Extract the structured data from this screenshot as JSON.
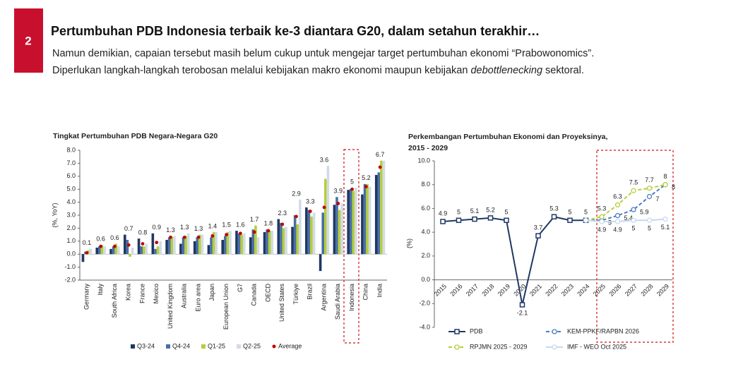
{
  "header": {
    "number": "2",
    "title": "Pertumbuhan PDB Indonesia terbaik ke-3 diantara G20, dalam setahun terakhir…",
    "line1": "Namun demikian, capaian tersebut masih belum cukup untuk mengejar target pertumbuhan ekonomi “Prabowonomics”.",
    "line2": [
      "Diperlukan langkah-langkah terobosan melalui kebijakan makro ekonomi maupun kebijakan ",
      "debottlenecking",
      " sektoral."
    ]
  },
  "chart_data": [
    {
      "type": "bar",
      "title": "Tingkat Pertumbuhan PDB Negara-Negara G20",
      "ylabel": "(%, YoY)",
      "categories": [
        "Germany",
        "Italy",
        "South Africa",
        "Korea",
        "France",
        "Mexico",
        "United Kingdom",
        "Australia",
        "Euro area",
        "Japan",
        "European Union",
        "G7",
        "Canada",
        "OECD",
        "United States",
        "Türkiye",
        "Brazil",
        "Argentina",
        "Saudi Arabia",
        "Indonesia",
        "China",
        "India"
      ],
      "series": [
        {
          "name": "Q3-24",
          "color": "#1f3864",
          "values": [
            -0.6,
            0.5,
            0.4,
            1.5,
            1.2,
            1.6,
            1.1,
            0.8,
            1.0,
            0.7,
            1.1,
            1.8,
            1.3,
            1.7,
            2.7,
            2.1,
            3.6,
            -1.3,
            3.8,
            4.95,
            4.6,
            6.1
          ]
        },
        {
          "name": "Q4-24",
          "color": "#4a6fa5",
          "values": [
            0.2,
            0.6,
            0.6,
            1.1,
            0.6,
            0.4,
            1.3,
            1.3,
            1.3,
            1.3,
            1.4,
            1.6,
            1.9,
            1.9,
            2.4,
            3.0,
            3.4,
            3.2,
            4.4,
            5.02,
            5.4,
            6.3
          ]
        },
        {
          "name": "Q1-25",
          "color": "#b5cf3a",
          "values": [
            0.3,
            0.7,
            0.8,
            -0.2,
            0.6,
            0.6,
            1.3,
            1.4,
            1.5,
            1.7,
            1.7,
            1.5,
            2.2,
            1.8,
            2.0,
            2.3,
            2.9,
            5.8,
            3.4,
            4.87,
            5.4,
            7.2
          ]
        },
        {
          "name": "Q2-25",
          "color": "#d3dbe8",
          "values": [
            0.4,
            0.6,
            0.6,
            0.5,
            0.8,
            1.0,
            1.4,
            1.6,
            1.5,
            1.7,
            1.8,
            1.6,
            1.3,
            1.8,
            2.1,
            4.2,
            3.2,
            6.8,
            3.9,
            5.12,
            5.2,
            7.2
          ]
        },
        {
          "name": "Average",
          "color": "#c00000",
          "style": "dot",
          "values": [
            0.1,
            0.6,
            0.6,
            0.7,
            0.8,
            0.9,
            1.3,
            1.3,
            1.3,
            1.4,
            1.5,
            1.6,
            1.7,
            1.8,
            2.3,
            2.9,
            3.3,
            3.6,
            3.9,
            5.0,
            5.2,
            6.7
          ]
        }
      ],
      "ylim": [
        -2,
        8
      ],
      "yticks": [
        {
          "value": -2,
          "label": "-2.0"
        },
        {
          "value": -1,
          "label": "-1.0"
        },
        {
          "value": 0,
          "label": "0.0"
        },
        {
          "value": 1,
          "label": "1.0"
        },
        {
          "value": 2,
          "label": "2.0"
        },
        {
          "value": 3,
          "label": "3.0"
        },
        {
          "value": 4,
          "label": "4.0"
        },
        {
          "value": 5,
          "label": "5.0"
        },
        {
          "value": 6,
          "label": "6.0"
        },
        {
          "value": 7,
          "label": "7.0"
        },
        {
          "value": 8,
          "label": "8.0"
        }
      ]
    },
    {
      "type": "line",
      "title": [
        "Perkembangan Pertumbuhan Ekonomi dan Proyeksinya,",
        "2015 - 2029"
      ],
      "ylabel": "(%)",
      "categories": [
        "2015",
        "2016",
        "2017",
        "2018",
        "2019",
        "2020",
        "2021",
        "2022",
        "2023",
        "2024",
        "2025",
        "2026",
        "2027",
        "2028",
        "2029"
      ],
      "series": [
        {
          "name": "PDB",
          "color": "#1f3864",
          "marker": "square",
          "dash": false,
          "label_pos": "above",
          "values": [
            4.9,
            5.0,
            5.1,
            5.2,
            5.0,
            -2.1,
            3.7,
            5.3,
            5.0,
            5.0,
            null,
            null,
            null,
            null,
            null
          ]
        },
        {
          "name": "KEM-PPKF/RAPBN 2026",
          "color": "#4a7ebb",
          "marker": "circle",
          "dash": true,
          "label_pos": "right",
          "values": [
            null,
            null,
            null,
            null,
            null,
            null,
            null,
            null,
            null,
            5.0,
            5.0,
            5.4,
            5.9,
            7.0,
            8.0
          ]
        },
        {
          "name": "RPJMN 2025 - 2029",
          "color": "#b5cf3a",
          "marker": "circle",
          "dash": true,
          "label_pos": "above",
          "values": [
            null,
            null,
            null,
            null,
            null,
            null,
            null,
            null,
            null,
            5.0,
            5.3,
            6.3,
            7.5,
            7.7,
            8.0
          ]
        },
        {
          "name": "IMF - WEO Oct 2025",
          "color": "#c6d9f1",
          "marker": "circle",
          "dash": false,
          "label_pos": "below",
          "values": [
            null,
            null,
            null,
            null,
            null,
            null,
            null,
            null,
            null,
            5.0,
            4.9,
            4.9,
            5.0,
            5.0,
            5.1
          ]
        }
      ],
      "ylim": [
        -4,
        10
      ],
      "yticks": [
        {
          "value": -4,
          "label": "-4.0"
        },
        {
          "value": -2,
          "label": "-2.0"
        },
        {
          "value": 0,
          "label": "0.0"
        },
        {
          "value": 2,
          "label": "2.0"
        },
        {
          "value": 4,
          "label": "4.0"
        },
        {
          "value": 6,
          "label": "6.0"
        },
        {
          "value": 8,
          "label": "8.0"
        },
        {
          "value": 10,
          "label": "10.0"
        }
      ]
    }
  ]
}
